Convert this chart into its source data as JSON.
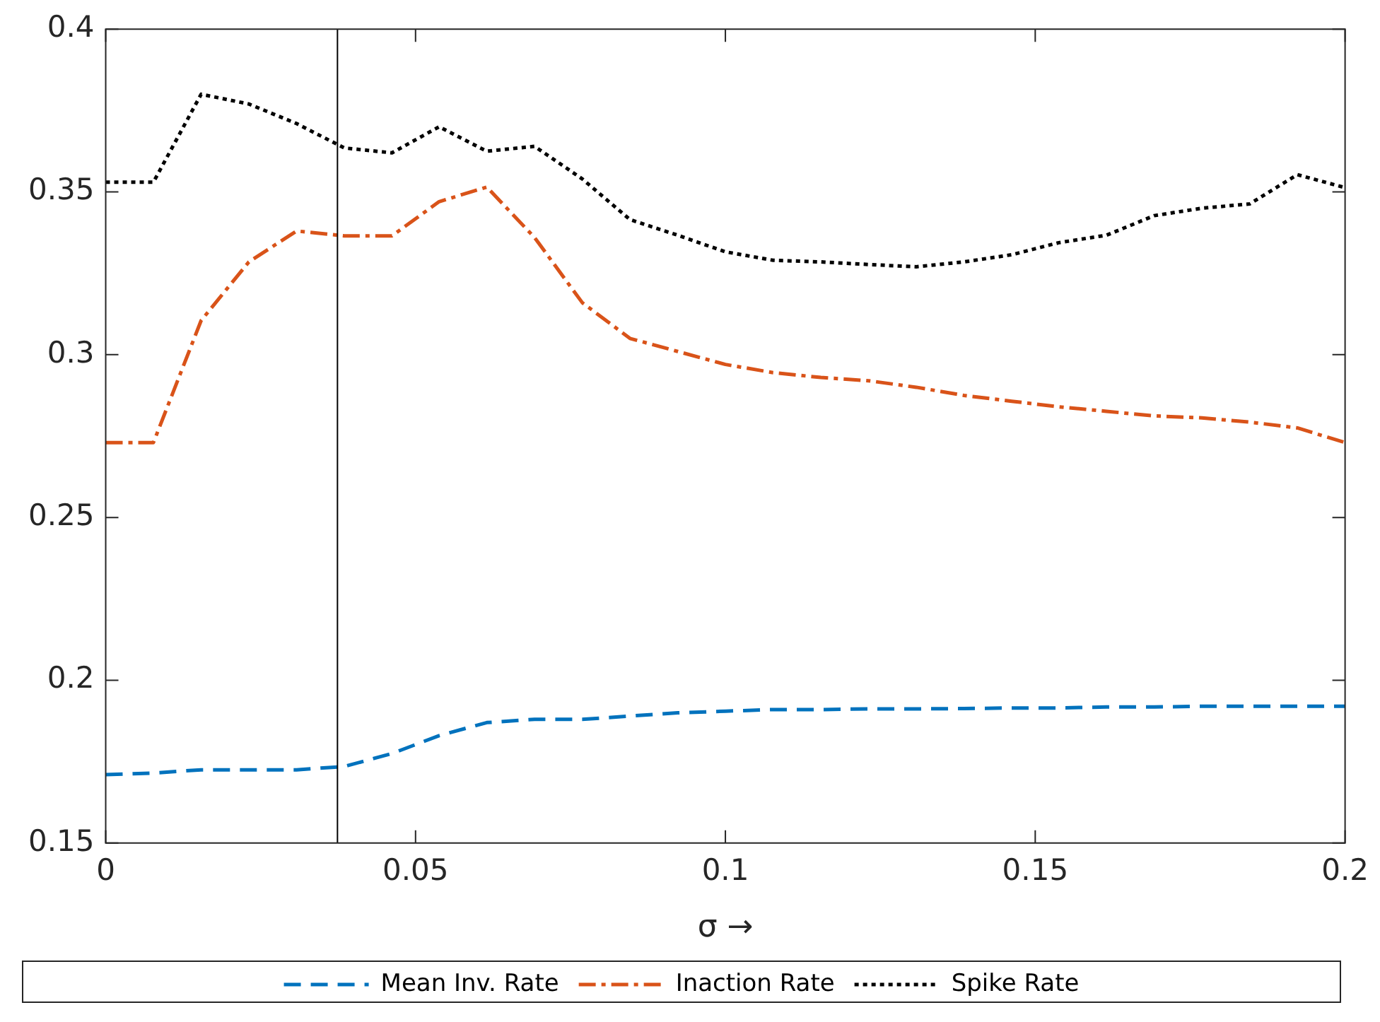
{
  "chart_data": {
    "type": "line",
    "xlabel": "σ →",
    "x": [
      0,
      0.0077,
      0.0154,
      0.0231,
      0.0308,
      0.0385,
      0.0462,
      0.0538,
      0.0615,
      0.0692,
      0.0769,
      0.0846,
      0.0923,
      0.1,
      0.1077,
      0.1154,
      0.1231,
      0.1308,
      0.1385,
      0.1462,
      0.1538,
      0.1615,
      0.1692,
      0.1769,
      0.1846,
      0.1923,
      0.2
    ],
    "series": [
      {
        "name": "Mean Inv. Rate",
        "color": "#0072bd",
        "line_style": "dashed",
        "values": [
          0.171,
          0.1715,
          0.1725,
          0.1725,
          0.1725,
          0.1735,
          0.1775,
          0.183,
          0.187,
          0.188,
          0.188,
          0.189,
          0.19,
          0.1905,
          0.191,
          0.191,
          0.1912,
          0.1912,
          0.1913,
          0.1915,
          0.1915,
          0.1918,
          0.1918,
          0.192,
          0.192,
          0.192,
          0.192
        ]
      },
      {
        "name": "Inaction Rate",
        "color": "#d95319",
        "line_style": "dashdot",
        "values": [
          0.273,
          0.273,
          0.3105,
          0.3285,
          0.338,
          0.3365,
          0.3365,
          0.347,
          0.3515,
          0.336,
          0.316,
          0.305,
          0.301,
          0.297,
          0.2945,
          0.293,
          0.292,
          0.29,
          0.2875,
          0.2857,
          0.284,
          0.2826,
          0.2812,
          0.2806,
          0.2793,
          0.2775,
          0.273
        ]
      },
      {
        "name": "Spike Rate",
        "color": "#000000",
        "line_style": "dotted",
        "values": [
          0.353,
          0.353,
          0.38,
          0.377,
          0.371,
          0.3635,
          0.362,
          0.37,
          0.3625,
          0.364,
          0.354,
          0.3415,
          0.3367,
          0.3316,
          0.329,
          0.3285,
          0.3277,
          0.327,
          0.3285,
          0.3307,
          0.3344,
          0.3367,
          0.3427,
          0.345,
          0.3463,
          0.3553,
          0.3513
        ]
      }
    ],
    "xlim": [
      0,
      0.2
    ],
    "xticks": [
      0,
      0.05,
      0.1,
      0.15,
      0.2
    ],
    "ylim": [
      0.15,
      0.4
    ],
    "yticks": [
      0.15,
      0.2,
      0.25,
      0.3,
      0.35,
      0.4
    ],
    "ref_lines": [
      {
        "axis": "x",
        "value": 0.0374,
        "color": "#000000"
      }
    ],
    "grid": false,
    "legend": "bottom",
    "marker": "none"
  }
}
